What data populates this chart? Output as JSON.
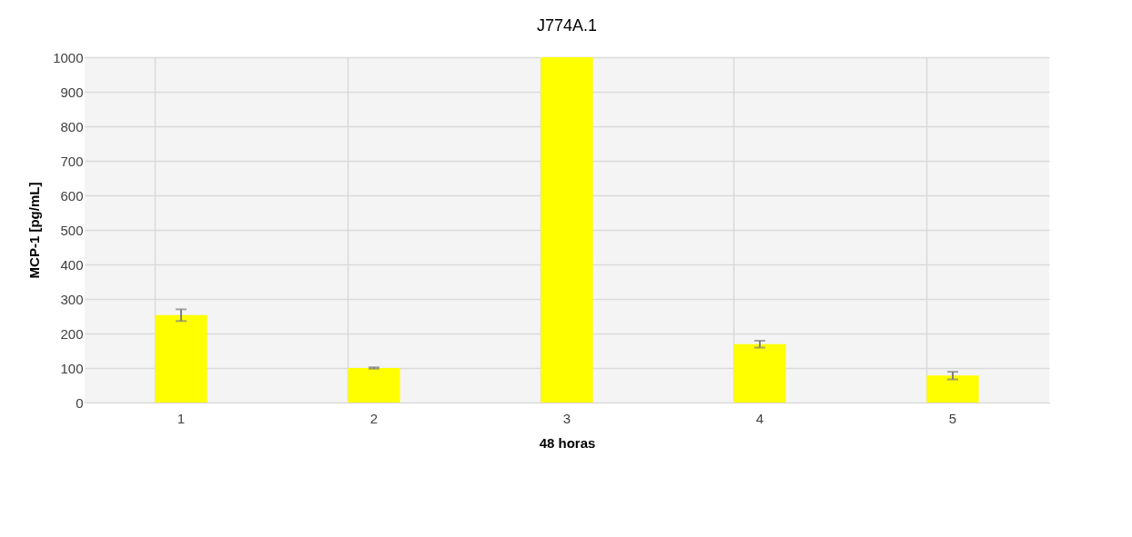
{
  "chart_data": {
    "type": "bar",
    "title": "J774A.1",
    "xlabel": "48 horas",
    "ylabel": "MCP-1 [pg/mL]",
    "categories": [
      "1",
      "2",
      "3",
      "4",
      "5"
    ],
    "values": [
      253,
      100,
      1000,
      169,
      78
    ],
    "errors": [
      17,
      2,
      null,
      10,
      11
    ],
    "color": "#ffff00",
    "ylim": [
      0,
      1000
    ],
    "yticks": [
      0,
      100,
      200,
      300,
      400,
      500,
      600,
      700,
      800,
      900,
      1000
    ],
    "grid": true
  }
}
